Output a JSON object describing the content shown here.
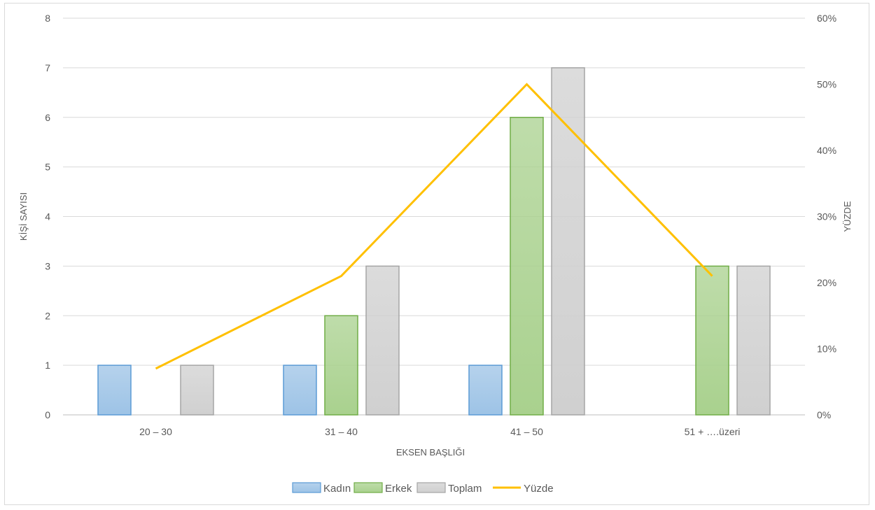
{
  "chart_data": {
    "type": "bar",
    "categories": [
      "20 – 30",
      "31 – 40",
      "41 – 50",
      "51 + ….üzeri"
    ],
    "series": [
      {
        "name": "Kadın",
        "kind": "bar",
        "axis": "left",
        "values": [
          1,
          1,
          1,
          0
        ],
        "color": "#9dc3e6",
        "stroke": "#5b9bd5"
      },
      {
        "name": "Erkek",
        "kind": "bar",
        "axis": "left",
        "values": [
          0,
          2,
          6,
          3
        ],
        "color": "#a9d18e",
        "stroke": "#70ad47"
      },
      {
        "name": "Toplam",
        "kind": "bar",
        "axis": "left",
        "values": [
          1,
          3,
          7,
          3
        ],
        "color": "#d0d0d0",
        "stroke": "#a5a5a5"
      },
      {
        "name": "Yüzde",
        "kind": "line",
        "axis": "right",
        "values": [
          0.07,
          0.21,
          0.5,
          0.21
        ],
        "color": "#ffc000"
      }
    ],
    "xlabel": "EKSEN BAŞLIĞI",
    "ylabel": "KİŞİ SAYISI",
    "y2label": "YÜZDE",
    "ylim": [
      0,
      8
    ],
    "yticks": [
      "0",
      "1",
      "2",
      "3",
      "4",
      "5",
      "6",
      "7",
      "8"
    ],
    "y2lim": [
      0,
      0.6
    ],
    "y2ticks": [
      "0%",
      "10%",
      "20%",
      "30%",
      "40%",
      "50%",
      "60%"
    ],
    "grid": true,
    "legend_position": "bottom"
  }
}
